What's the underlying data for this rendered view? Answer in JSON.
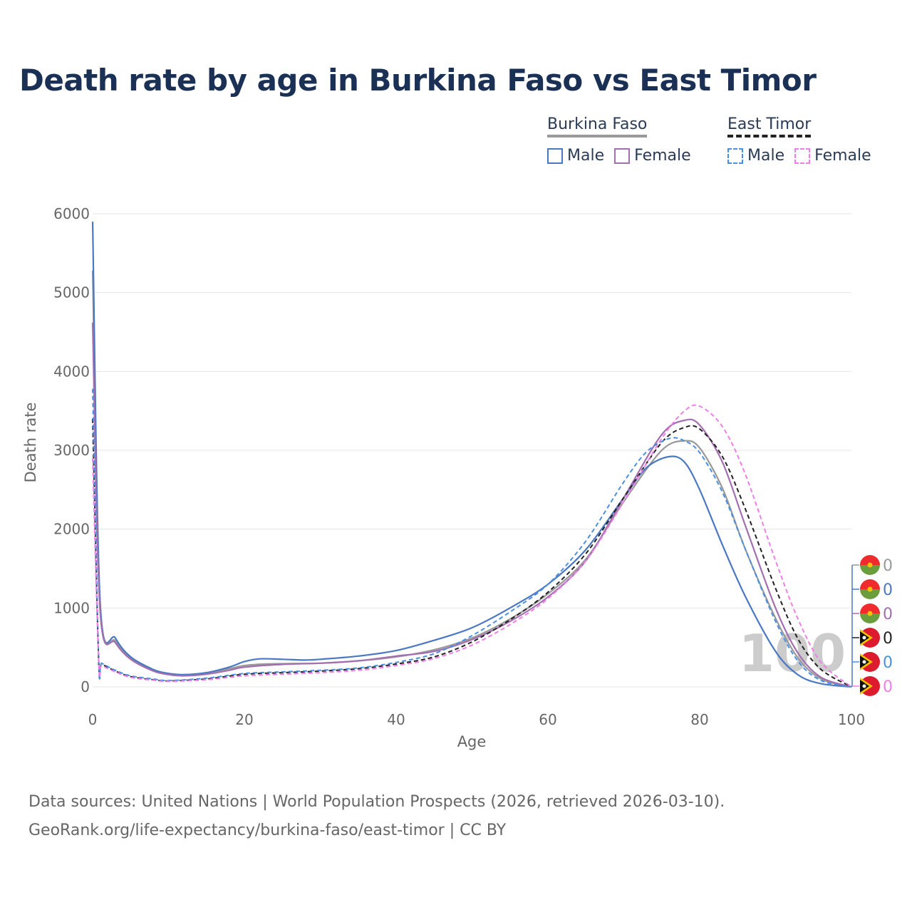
{
  "title": "Death rate by age in Burkina Faso vs East Timor",
  "legend": {
    "groups": [
      {
        "name": "Burkina Faso",
        "items": [
          {
            "label": "Male",
            "color": "#4a78c2",
            "dashed": false
          },
          {
            "label": "Female",
            "color": "#a36fb0",
            "dashed": false
          }
        ]
      },
      {
        "name": "East Timor",
        "items": [
          {
            "label": "Male",
            "color": "#4a90e2",
            "dashed": true
          },
          {
            "label": "Female",
            "color": "#f07ee8",
            "dashed": true
          }
        ]
      }
    ]
  },
  "footer": {
    "line1": "Data sources: United Nations | World Population Prospects (2026, retrieved 2026-03-10).",
    "line2": "GeoRank.org/life-expectancy/burkina-faso/east-timor | CC BY"
  },
  "chart_data": {
    "type": "line",
    "xlabel": "Age",
    "ylabel": "Death rate",
    "xlim": [
      0,
      100
    ],
    "ylim": [
      0,
      6000
    ],
    "xticks": [
      0,
      20,
      40,
      60,
      80,
      100
    ],
    "yticks": [
      0,
      1000,
      2000,
      3000,
      4000,
      5000,
      6000
    ],
    "grid": true,
    "watermark": "100",
    "series": [
      {
        "name": "Burkina Faso total",
        "color": "#999999",
        "dash": false,
        "x": [
          0,
          1,
          3,
          5,
          8,
          10,
          12,
          15,
          18,
          20,
          23,
          26,
          30,
          35,
          40,
          45,
          50,
          55,
          60,
          65,
          70,
          75,
          78,
          80,
          83,
          86,
          90,
          93,
          96,
          100
        ],
        "y": [
          5280,
          980,
          580,
          360,
          210,
          160,
          150,
          175,
          230,
          270,
          290,
          295,
          300,
          330,
          380,
          470,
          620,
          860,
          1180,
          1620,
          2350,
          3000,
          3120,
          3030,
          2520,
          1750,
          870,
          360,
          100,
          0
        ]
      },
      {
        "name": "Burkina Faso male",
        "color": "#4a78c2",
        "dash": false,
        "x": [
          0,
          1,
          3,
          5,
          8,
          10,
          12,
          15,
          18,
          20,
          22,
          25,
          28,
          30,
          35,
          40,
          45,
          50,
          55,
          60,
          65,
          70,
          73,
          76,
          78,
          80,
          83,
          86,
          90,
          93,
          96,
          100
        ],
        "y": [
          5900,
          1050,
          620,
          380,
          220,
          170,
          155,
          180,
          250,
          320,
          355,
          350,
          340,
          350,
          390,
          460,
          590,
          750,
          1000,
          1300,
          1740,
          2400,
          2780,
          2920,
          2850,
          2500,
          1800,
          1150,
          450,
          150,
          40,
          0
        ]
      },
      {
        "name": "Burkina Faso female",
        "color": "#a36fb0",
        "dash": false,
        "x": [
          0,
          1,
          3,
          5,
          8,
          10,
          12,
          15,
          18,
          20,
          25,
          30,
          35,
          40,
          45,
          50,
          55,
          60,
          65,
          70,
          75,
          78,
          80,
          83,
          86,
          90,
          93,
          96,
          100
        ],
        "y": [
          4620,
          940,
          560,
          350,
          200,
          155,
          140,
          160,
          210,
          250,
          285,
          300,
          330,
          390,
          450,
          600,
          830,
          1140,
          1600,
          2400,
          3200,
          3380,
          3320,
          2850,
          2050,
          1000,
          420,
          120,
          0
        ]
      },
      {
        "name": "East Timor total",
        "color": "#222222",
        "dash": true,
        "x": [
          0,
          0.8,
          1.2,
          3,
          5,
          8,
          10,
          15,
          20,
          25,
          30,
          35,
          40,
          45,
          50,
          55,
          60,
          65,
          70,
          75,
          78,
          80,
          83,
          86,
          90,
          93,
          96,
          100
        ],
        "y": [
          3400,
          330,
          290,
          200,
          130,
          90,
          75,
          100,
          160,
          180,
          200,
          230,
          290,
          380,
          570,
          850,
          1200,
          1690,
          2400,
          3100,
          3290,
          3270,
          2920,
          2260,
          1250,
          600,
          220,
          0
        ]
      },
      {
        "name": "East Timor male",
        "color": "#4a90e2",
        "dash": true,
        "x": [
          0,
          0.8,
          1.2,
          3,
          5,
          8,
          10,
          15,
          20,
          25,
          30,
          35,
          40,
          45,
          50,
          55,
          60,
          65,
          70,
          73,
          76,
          78,
          80,
          83,
          86,
          90,
          93,
          96,
          100
        ],
        "y": [
          3780,
          340,
          300,
          210,
          140,
          100,
          80,
          110,
          170,
          190,
          210,
          240,
          310,
          420,
          650,
          950,
          1300,
          1850,
          2600,
          2980,
          3150,
          3120,
          2970,
          2470,
          1750,
          830,
          320,
          80,
          0
        ]
      },
      {
        "name": "East Timor female",
        "color": "#f07ee8",
        "dash": true,
        "x": [
          0,
          0.8,
          1.2,
          3,
          5,
          8,
          10,
          15,
          20,
          25,
          30,
          35,
          40,
          45,
          50,
          55,
          60,
          65,
          70,
          75,
          78,
          80,
          83,
          86,
          90,
          93,
          96,
          100
        ],
        "y": [
          2900,
          310,
          270,
          190,
          120,
          85,
          70,
          90,
          140,
          160,
          180,
          210,
          270,
          360,
          530,
          790,
          1120,
          1600,
          2350,
          3150,
          3500,
          3560,
          3300,
          2700,
          1600,
          850,
          310,
          0
        ]
      }
    ],
    "end_markers": [
      {
        "country": "Burkina Faso",
        "value": "0",
        "color": "#999999"
      },
      {
        "country": "Burkina Faso",
        "value": "0",
        "color": "#4a78c2"
      },
      {
        "country": "Burkina Faso",
        "value": "0",
        "color": "#a36fb0"
      },
      {
        "country": "East Timor",
        "value": "0",
        "color": "#222222"
      },
      {
        "country": "East Timor",
        "value": "0",
        "color": "#4a90e2"
      },
      {
        "country": "East Timor",
        "value": "0",
        "color": "#f07ee8"
      }
    ]
  }
}
